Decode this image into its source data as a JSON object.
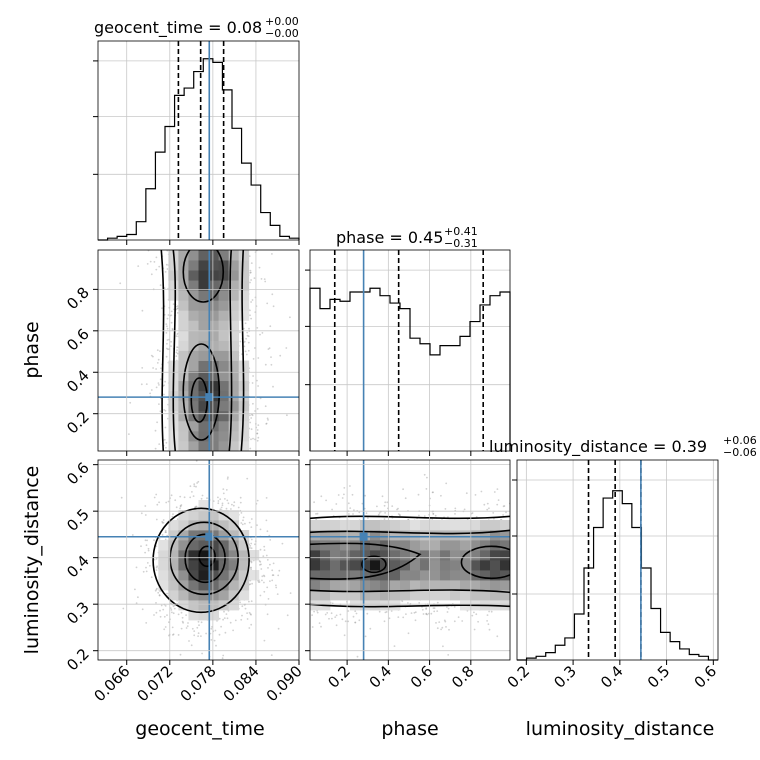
{
  "chart_data": {
    "type": "corner",
    "parameters": [
      "geocent_time",
      "phase",
      "luminosity_distance"
    ],
    "truths": {
      "geocent_time": 0.0775,
      "phase": 0.28,
      "luminosity_distance": 0.445
    },
    "ranges": {
      "geocent_time": [
        0.062,
        0.09
      ],
      "phase": [
        0.02,
        0.99
      ],
      "luminosity_distance": [
        0.18,
        0.61
      ]
    },
    "tick_values": {
      "geocent_time": [
        0.066,
        0.072,
        0.078,
        0.084,
        0.09
      ],
      "phase": [
        0.2,
        0.4,
        0.6,
        0.8
      ],
      "luminosity_distance": [
        0.2,
        0.3,
        0.4,
        0.5,
        0.6
      ]
    },
    "tick_labels": {
      "geocent_time": [
        "0.066",
        "0.072",
        "0.078",
        "0.084",
        "0.090"
      ],
      "phase": [
        "0.2",
        "0.4",
        "0.6",
        "0.8"
      ],
      "luminosity_distance": [
        "0.2",
        "0.3",
        "0.4",
        "0.5",
        "0.6"
      ]
    },
    "axis_labels": {
      "geocent_time": "geocent_time",
      "phase": "phase",
      "luminosity_distance": "luminosity_distance"
    },
    "titles": {
      "geocent_time": {
        "text": "geocent_time = 0.08",
        "sup": "+0.00",
        "sub": "−0.00"
      },
      "phase": {
        "text": "phase = 0.45",
        "sup": "+0.41",
        "sub": "−0.31"
      },
      "luminosity_distance": {
        "text": "luminosity_distance = 0.39",
        "sup": "+0.06",
        "sub": "−0.06"
      }
    },
    "quantiles": {
      "geocent_time": [
        0.0732,
        0.0763,
        0.0795
      ],
      "phase": [
        0.14,
        0.45,
        0.86
      ],
      "luminosity_distance": [
        0.333,
        0.39,
        0.445
      ]
    },
    "histograms": {
      "geocent_time": {
        "edges_range": [
          0.062,
          0.09
        ],
        "counts": [
          0.0,
          0.01,
          0.02,
          0.03,
          0.1,
          0.28,
          0.48,
          0.62,
          0.79,
          0.83,
          0.92,
          0.99,
          0.97,
          0.82,
          0.61,
          0.42,
          0.3,
          0.15,
          0.08,
          0.02,
          0.01
        ]
      },
      "phase": {
        "edges_range": [
          0.02,
          0.99
        ],
        "counts": [
          0.88,
          0.77,
          0.82,
          0.81,
          0.86,
          0.86,
          0.88,
          0.84,
          0.8,
          0.77,
          0.61,
          0.58,
          0.52,
          0.57,
          0.57,
          0.62,
          0.7,
          0.79,
          0.84,
          0.86
        ]
      },
      "luminosity_distance": {
        "edges_range": [
          0.18,
          0.61
        ],
        "counts": [
          0.0,
          0.01,
          0.02,
          0.04,
          0.08,
          0.12,
          0.25,
          0.5,
          0.72,
          0.88,
          0.92,
          0.85,
          0.72,
          0.5,
          0.28,
          0.15,
          0.1,
          0.06,
          0.03,
          0.02,
          0.0
        ]
      }
    },
    "density_2d": {
      "phase_vs_geocent_time": {
        "center": [
          0.0775,
          0.5
        ],
        "spread": [
          0.0033,
          0.45
        ],
        "hotspots": [
          [
            0.0772,
            0.88
          ],
          [
            0.0772,
            0.28
          ]
        ]
      },
      "luminosity_distance_vs_geocent_time": {
        "center": [
          0.0772,
          0.39
        ],
        "spread": [
          0.0032,
          0.06
        ]
      },
      "luminosity_distance_vs_phase": {
        "center": [
          0.5,
          0.39
        ],
        "spread": [
          0.6,
          0.05
        ],
        "hotspots": [
          [
            0.06,
            0.39
          ],
          [
            0.33,
            0.39
          ],
          [
            0.92,
            0.39
          ]
        ]
      }
    },
    "truth_color": "#4682b4",
    "grid": true
  }
}
